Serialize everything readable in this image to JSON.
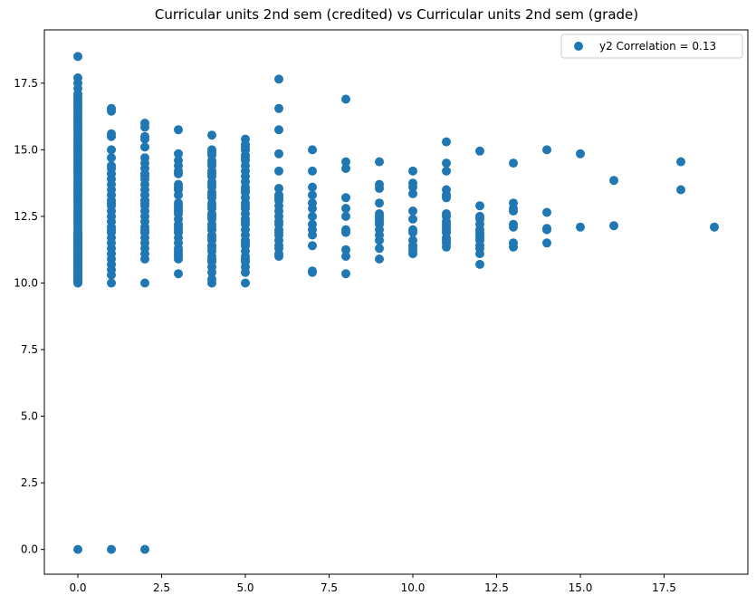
{
  "chart_data": {
    "type": "scatter",
    "title": "Curricular units 2nd sem (credited) vs Curricular units 2nd sem (grade)",
    "xlabel": "",
    "ylabel": "",
    "xlim": [
      -1,
      20
    ],
    "ylim": [
      -0.93,
      19.5
    ],
    "xticks": [
      "0.0",
      "2.5",
      "5.0",
      "7.5",
      "10.0",
      "12.5",
      "15.0",
      "17.5"
    ],
    "yticks": [
      "0.0",
      "2.5",
      "5.0",
      "7.5",
      "10.0",
      "12.5",
      "15.0",
      "17.5"
    ],
    "grid": false,
    "legend": {
      "position": "top-right",
      "entries": [
        "y2 Correlation = 0.13"
      ]
    },
    "series": [
      {
        "name": "y2 Correlation = 0.13",
        "color": "#1f77b4",
        "x": [
          0,
          0,
          0,
          0,
          0,
          0,
          0,
          0,
          0,
          0,
          0,
          0,
          0,
          0,
          0,
          0,
          0,
          0,
          0,
          0,
          0,
          0,
          0,
          0,
          0,
          0,
          0,
          0,
          0,
          0,
          0,
          0,
          0,
          0,
          0,
          0,
          0,
          0,
          0,
          0,
          0,
          0,
          0,
          0,
          0,
          0,
          0,
          0,
          0,
          0,
          0,
          0,
          0,
          0,
          0,
          0,
          0,
          0,
          0,
          0,
          0,
          0,
          0,
          0,
          0,
          0,
          0,
          0,
          0,
          0,
          0,
          0,
          0,
          0,
          0,
          0,
          0,
          0,
          0,
          0,
          0,
          0,
          0,
          0,
          0,
          0,
          0,
          0,
          0,
          0,
          0,
          0,
          0,
          0,
          0,
          0,
          1,
          1,
          1,
          1,
          1,
          1,
          1,
          1,
          1,
          1,
          1,
          1,
          1,
          1,
          1,
          1,
          1,
          1,
          1,
          1,
          1,
          1,
          1,
          1,
          1,
          1,
          1,
          1,
          1,
          1,
          1,
          1,
          2,
          2,
          2,
          2,
          2,
          2,
          2,
          2,
          2,
          2,
          2,
          2,
          2,
          2,
          2,
          2,
          2,
          2,
          2,
          2,
          2,
          2,
          2,
          2,
          2,
          2,
          2,
          2,
          2,
          2,
          3,
          3,
          3,
          3,
          3,
          3,
          3,
          3,
          3,
          3,
          3,
          3,
          3,
          3,
          3,
          3,
          3,
          3,
          3,
          3,
          3,
          3,
          3,
          3,
          3,
          3,
          3,
          3,
          4,
          4,
          4,
          4,
          4,
          4,
          4,
          4,
          4,
          4,
          4,
          4,
          4,
          4,
          4,
          4,
          4,
          4,
          4,
          4,
          4,
          4,
          4,
          4,
          4,
          4,
          4,
          4,
          4,
          4,
          4,
          4,
          4,
          4,
          4,
          4,
          4,
          4,
          5,
          5,
          5,
          5,
          5,
          5,
          5,
          5,
          5,
          5,
          5,
          5,
          5,
          5,
          5,
          5,
          5,
          5,
          5,
          5,
          5,
          5,
          5,
          5,
          5,
          5,
          5,
          5,
          5,
          5,
          5,
          5,
          5,
          5,
          6,
          6,
          6,
          6,
          6,
          6,
          6,
          6,
          6,
          6,
          6,
          6,
          6,
          6,
          6,
          6,
          6,
          6,
          6,
          6,
          6,
          6,
          7,
          7,
          7,
          7,
          7,
          7,
          7,
          7,
          7,
          7,
          7,
          7,
          7,
          8,
          8,
          8,
          8,
          8,
          8,
          8,
          8,
          8,
          8,
          8,
          9,
          9,
          9,
          9,
          9,
          9,
          9,
          9,
          9,
          9,
          9,
          9,
          9,
          9,
          10,
          10,
          10,
          10,
          10,
          10,
          10,
          10,
          10,
          10,
          10,
          10,
          10,
          11,
          11,
          11,
          11,
          11,
          11,
          11,
          11,
          11,
          11,
          11,
          11,
          11,
          11,
          11,
          11,
          11,
          12,
          12,
          12,
          12,
          12,
          12,
          12,
          12,
          12,
          12,
          12,
          12,
          12,
          12,
          13,
          13,
          13,
          13,
          13,
          13,
          13,
          13,
          14,
          14,
          14,
          14,
          14,
          15,
          15,
          16,
          16,
          18,
          18,
          19
        ],
        "y": [
          0,
          18.5,
          17.7,
          17.5,
          17.3,
          17.1,
          17,
          16.9,
          16.8,
          16.7,
          16.6,
          16.5,
          16.4,
          16.3,
          16.2,
          16.1,
          16,
          15.9,
          15.8,
          15.7,
          15.6,
          15.5,
          15.4,
          15.3,
          15.2,
          15.1,
          15,
          14.9,
          14.8,
          14.7,
          14.6,
          14.5,
          14.4,
          14.3,
          14.2,
          14.1,
          14,
          13.9,
          13.8,
          13.7,
          13.6,
          13.5,
          13.4,
          13.3,
          13.2,
          13.1,
          13,
          12.9,
          12.8,
          12.7,
          12.6,
          12.5,
          12.4,
          12.3,
          12.2,
          12.1,
          12,
          11.9,
          11.8,
          11.7,
          11.6,
          11.5,
          11.4,
          11.3,
          11.2,
          11.1,
          11,
          10.9,
          10.8,
          10.7,
          10.6,
          10.5,
          10.4,
          10.3,
          10.2,
          10.1,
          10,
          10.05,
          10.15,
          10.25,
          10.35,
          10.45,
          10.55,
          10.65,
          10.75,
          10.85,
          10.95,
          11.05,
          11.15,
          11.25,
          11.35,
          11.45,
          11.55,
          11.65,
          11.75,
          11.85,
          0,
          16.55,
          16.45,
          15.6,
          15.5,
          15,
          14.7,
          14.4,
          14.3,
          14.1,
          13.9,
          13.7,
          13.5,
          13.3,
          13.1,
          12.9,
          12.7,
          12.5,
          12.3,
          12.1,
          11.9,
          11.7,
          11.5,
          11.3,
          11.1,
          10.9,
          10.7,
          10.5,
          10.3,
          10,
          12.0,
          13.0,
          0,
          16,
          15.85,
          15.5,
          15.4,
          15.1,
          14.7,
          14.5,
          14.3,
          14.1,
          13.9,
          13.7,
          13.5,
          13.3,
          13.1,
          12.9,
          12.7,
          12.5,
          12.3,
          12.1,
          11.9,
          11.7,
          11.5,
          11.3,
          11.1,
          10.9,
          10.0,
          12.0,
          13.0,
          14.0,
          15.75,
          14.85,
          14.6,
          14.2,
          14.1,
          13.7,
          13.5,
          13.3,
          13,
          12.8,
          12.6,
          12.4,
          12.2,
          12,
          11.9,
          11.7,
          11.5,
          11.3,
          11.1,
          10.9,
          10.35,
          14.4,
          12.7,
          12.1,
          11.2,
          13.6,
          12.9,
          11.0,
          15.55,
          15,
          14.8,
          14.6,
          14.4,
          14.2,
          14,
          13.8,
          13.6,
          13.4,
          13.2,
          13,
          12.8,
          12.6,
          12.4,
          12.2,
          12,
          11.8,
          11.6,
          11.4,
          11.2,
          11,
          10.8,
          10.6,
          10.4,
          10.15,
          10,
          14.9,
          14.5,
          14.1,
          13.7,
          13.3,
          12.9,
          12.5,
          12.1,
          11.7,
          11.3,
          10.9,
          15.4,
          15.2,
          15,
          14.8,
          14.6,
          14.4,
          14.2,
          14,
          13.8,
          13.6,
          13.4,
          13.2,
          13,
          12.8,
          12.6,
          12.4,
          12.2,
          12,
          11.8,
          11.6,
          11.4,
          11.2,
          11,
          10.8,
          10.6,
          10.4,
          10,
          15.1,
          14.7,
          13.5,
          12.9,
          12.3,
          11.5,
          10.9,
          17.65,
          16.55,
          15.75,
          14.85,
          14.2,
          13.55,
          13.3,
          13.1,
          12.9,
          12.7,
          12.3,
          12.2,
          12,
          11.8,
          11.6,
          11.3,
          11.1,
          11,
          13.2,
          12.5,
          11.9,
          11.4,
          15,
          14.2,
          13.6,
          13.3,
          13,
          12.8,
          12.5,
          12.2,
          12,
          11.8,
          11.4,
          10.45,
          10.4,
          16.9,
          14.55,
          14.3,
          13.2,
          12.8,
          12.5,
          12,
          11.9,
          11.25,
          11,
          10.35,
          14.55,
          13.7,
          13.55,
          13,
          12.6,
          12.4,
          12.3,
          12.2,
          12,
          11.8,
          11.6,
          11.3,
          10.9,
          12.5,
          14.2,
          13.75,
          13.6,
          13.35,
          12.7,
          12.4,
          11.9,
          11.6,
          11.4,
          11.3,
          11.1,
          11.2,
          12.0,
          15.3,
          14.5,
          14.2,
          13.5,
          13.3,
          13.2,
          12.6,
          12.5,
          12.3,
          12.1,
          11.9,
          11.7,
          11.6,
          11.5,
          11.35,
          12.0,
          12.2,
          14.95,
          12.9,
          12.5,
          12.4,
          12.2,
          11.9,
          11.8,
          11.6,
          11.4,
          11.3,
          11.1,
          10.7,
          12.0,
          11.7,
          14.5,
          13,
          12.8,
          12.2,
          12.1,
          11.5,
          11.35,
          12.7,
          15,
          12.65,
          12.05,
          11.5,
          12.0,
          14.85,
          12.1,
          13.85,
          12.15,
          14.55,
          13.5,
          12.1
        ]
      }
    ]
  }
}
